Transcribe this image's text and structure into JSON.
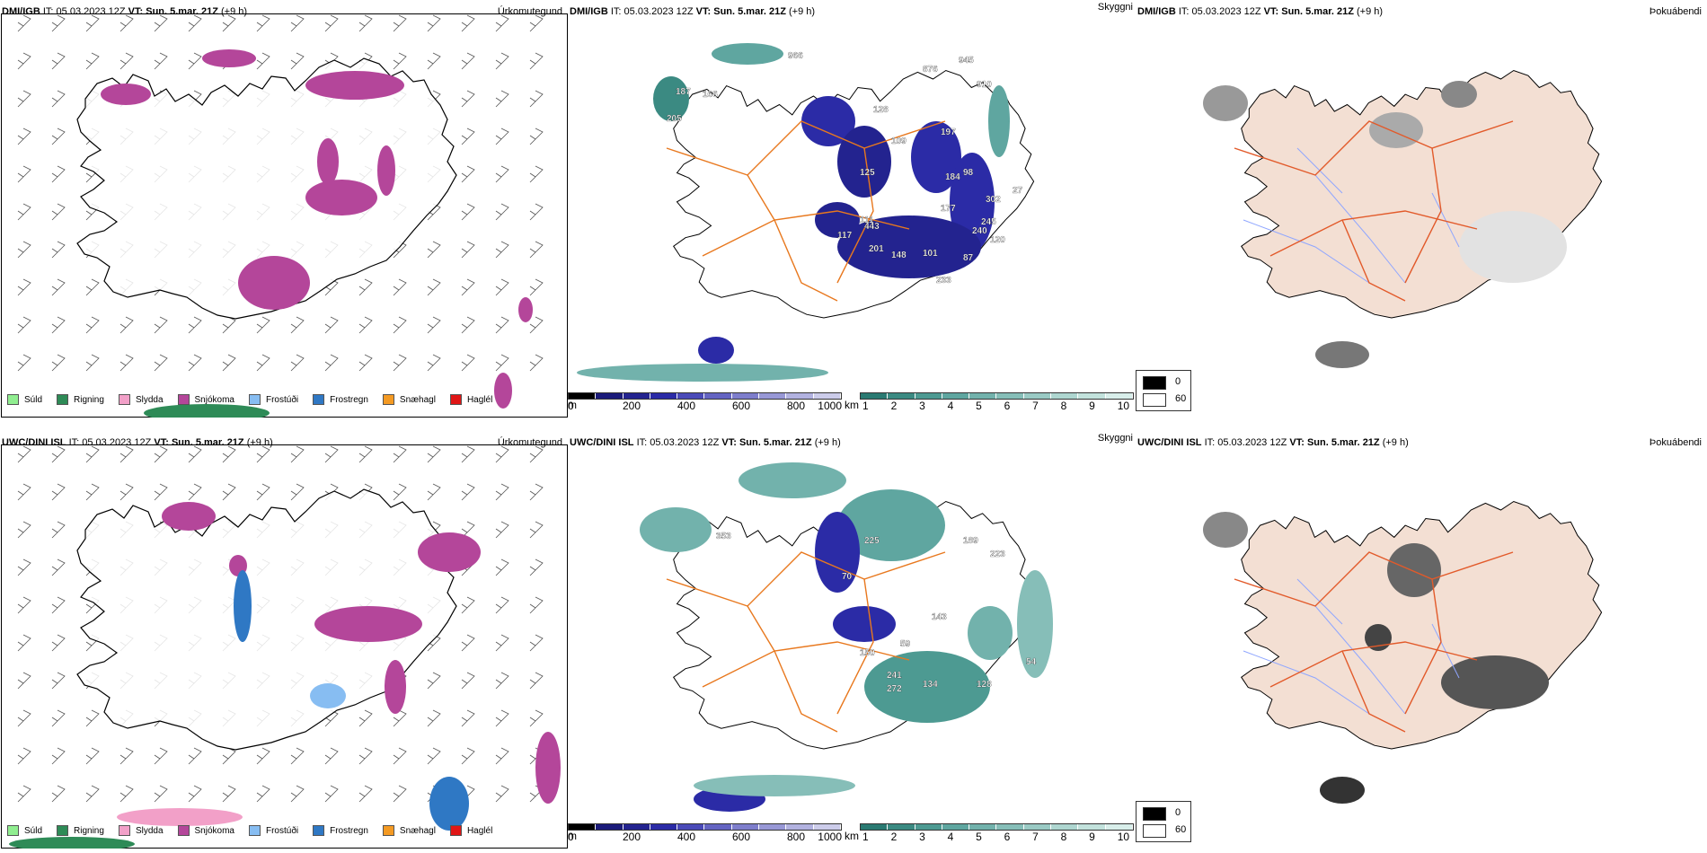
{
  "legend": [
    {
      "label": "Súld",
      "color": "#90ee90"
    },
    {
      "label": "Rigning",
      "color": "#2e8b57"
    },
    {
      "label": "Slydda",
      "color": "#f2a0c8"
    },
    {
      "label": "Snjókoma",
      "color": "#b4469a"
    },
    {
      "label": "Frostúði",
      "color": "#87bdf2"
    },
    {
      "label": "Frostregn",
      "color": "#2f78c4"
    },
    {
      "label": "Snæhagl",
      "color": "#f49a23"
    },
    {
      "label": "Haglél",
      "color": "#e01616"
    }
  ],
  "params": {
    "precip": "Úrkomutegund",
    "cloud": "Skyggni",
    "fog": "Þokuábendi"
  },
  "rows": [
    {
      "model": "DMI/IGB",
      "it_label": "IT:",
      "it_value": "05.03.2023 12Z",
      "vt_label": "VT: Sun. 5.mar. 21Z",
      "offset": "(+9 h)",
      "cloud_labels": [
        "966",
        "187",
        "166",
        "205",
        "876",
        "945",
        "910",
        "128",
        "109",
        "197",
        "125",
        "184",
        "111",
        "443",
        "117",
        "177",
        "245",
        "302",
        "240",
        "201",
        "148",
        "101",
        "87",
        "233",
        "120",
        "98",
        "27"
      ]
    },
    {
      "model": "UWC/DINI ISL",
      "it_label": "IT:",
      "it_value": "05.03.2023 12Z",
      "vt_label": "VT: Sun. 5.mar. 21Z",
      "offset": "(+9 h)",
      "cloud_labels": [
        "353",
        "225",
        "70",
        "189",
        "223",
        "143",
        "59",
        "272",
        "134",
        "128",
        "150",
        "54",
        "241"
      ]
    }
  ],
  "colorbar_height": {
    "unit": "m",
    "ticks": [
      "0",
      "200",
      "400",
      "600",
      "800",
      "1000"
    ],
    "colors": [
      "#000000",
      "#1b1b7a",
      "#23238f",
      "#2b2ba6",
      "#4a4ab8",
      "#6464c2",
      "#7e7ecc",
      "#9898d6",
      "#b2b2e0",
      "#ccccea"
    ]
  },
  "colorbar_km": {
    "unit": "km",
    "ticks": [
      "1",
      "2",
      "3",
      "4",
      "5",
      "6",
      "7",
      "8",
      "9",
      "10"
    ],
    "colors": [
      "#2a7a72",
      "#3b8a82",
      "#4d9a92",
      "#5fa6a0",
      "#72b2ac",
      "#86beb8",
      "#9acac4",
      "#aed6d0",
      "#c2e2dc",
      "#d8eeea"
    ]
  },
  "fog_legend": [
    {
      "label": "0",
      "color": "#000000"
    },
    {
      "label": "60",
      "color": "#ffffff"
    }
  ]
}
